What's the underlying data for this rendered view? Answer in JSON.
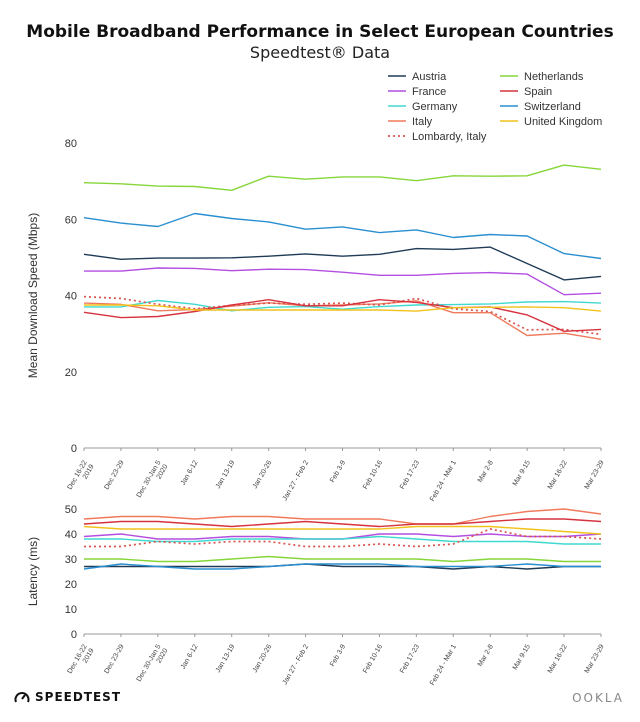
{
  "header": {
    "title": "Mobile Broadband Performance in Select European Countries",
    "subtitle": "Speedtest® Data"
  },
  "footer": {
    "brand_left": "SPEEDTEST",
    "brand_right": "OOKLA"
  },
  "colors": {
    "Austria": "#1f3b57",
    "France": "#b34fe0",
    "Germany": "#3fd9cf",
    "Italy": "#f07a5c",
    "Lombardy, Italy": "#d9534f",
    "Netherlands": "#86d63a",
    "Spain": "#d6333f",
    "Switzerland": "#2a8fd0",
    "United Kingdom": "#f1c21b"
  },
  "chart_data": [
    {
      "type": "line",
      "ylabel": "Mean Download Speed (Mbps)",
      "ylim": [
        0,
        80
      ],
      "yticks": [
        0,
        20,
        40,
        60,
        80
      ],
      "grid": false,
      "legend": "top-right",
      "categories": [
        "Dec 16-22 2019",
        "Dec 23-29",
        "Dec 30-Jan 5 2020",
        "Jan 6-12",
        "Jan 13-19",
        "Jan 20-26",
        "Jan 27 - Feb 2",
        "Feb 3-9",
        "Feb 10-16",
        "Feb 17-23",
        "Feb 24 - Mar 1",
        "Mar 2-8",
        "Mar 9-15",
        "Mar 16-22",
        "Mar 23-29"
      ],
      "series": [
        {
          "name": "Austria",
          "dashed": false,
          "values": [
            50.8,
            49.5,
            49.8,
            49.8,
            49.9,
            50.3,
            50.9,
            50.3,
            50.8,
            52.3,
            52.1,
            52.7,
            48.4,
            44.1,
            45.0
          ]
        },
        {
          "name": "France",
          "dashed": false,
          "values": [
            46.4,
            46.4,
            47.2,
            47.1,
            46.5,
            46.9,
            46.8,
            46.1,
            45.3,
            45.3,
            45.8,
            46.0,
            45.6,
            40.2,
            40.6
          ]
        },
        {
          "name": "Germany",
          "dashed": false,
          "values": [
            37.0,
            37.0,
            38.7,
            37.7,
            36.0,
            36.9,
            37.1,
            36.4,
            37.1,
            37.5,
            37.6,
            37.8,
            38.3,
            38.4,
            38.0
          ]
        },
        {
          "name": "Italy",
          "dashed": false,
          "values": [
            38.0,
            37.7,
            36.0,
            36.3,
            37.2,
            38.1,
            37.3,
            37.5,
            37.8,
            38.6,
            35.5,
            35.5,
            29.5,
            30.1,
            28.5
          ]
        },
        {
          "name": "Lombardy, Italy",
          "dashed": true,
          "values": [
            39.7,
            39.2,
            37.7,
            36.5,
            37.4,
            38.0,
            37.7,
            38.0,
            37.5,
            39.2,
            36.5,
            35.8,
            31.0,
            31.1,
            29.8
          ]
        },
        {
          "name": "Netherlands",
          "dashed": false,
          "values": [
            69.6,
            69.3,
            68.7,
            68.6,
            67.6,
            71.3,
            70.5,
            71.1,
            71.1,
            70.1,
            71.4,
            71.3,
            71.4,
            74.2,
            73.1
          ]
        },
        {
          "name": "Spain",
          "dashed": false,
          "values": [
            35.6,
            34.2,
            34.5,
            35.8,
            37.5,
            38.9,
            37.3,
            37.3,
            38.9,
            38.2,
            36.8,
            37.0,
            34.9,
            30.6,
            31.1
          ]
        },
        {
          "name": "Switzerland",
          "dashed": false,
          "values": [
            60.4,
            59.0,
            58.1,
            61.5,
            60.2,
            59.3,
            57.4,
            58.0,
            56.5,
            57.2,
            55.2,
            56.0,
            55.6,
            51.0,
            49.7
          ]
        },
        {
          "name": "United Kingdom",
          "dashed": false,
          "values": [
            37.5,
            37.5,
            37.3,
            36.2,
            36.2,
            36.2,
            36.2,
            36.2,
            36.2,
            35.9,
            36.8,
            36.9,
            37.0,
            36.8,
            35.9
          ]
        }
      ]
    },
    {
      "type": "line",
      "ylabel": "Latency (ms)",
      "ylim": [
        0,
        50
      ],
      "yticks": [
        0,
        10,
        20,
        30,
        40,
        50
      ],
      "grid": false,
      "categories": [
        "Dec 16-22 2019",
        "Dec 23-29",
        "Dec 30-Jan 5 2020",
        "Jan 6-12",
        "Jan 13-19",
        "Jan 20-26",
        "Jan 27 - Feb 2",
        "Feb 3-9",
        "Feb 10-16",
        "Feb 17-23",
        "Feb 24 - Mar 1",
        "Mar 2-8",
        "Mar 9-15",
        "Mar 16-22",
        "Mar 23-29"
      ],
      "series": [
        {
          "name": "Austria",
          "dashed": false,
          "values": [
            27,
            27,
            27,
            27,
            27,
            27,
            28,
            27,
            27,
            27,
            26,
            27,
            26,
            27,
            27
          ]
        },
        {
          "name": "France",
          "dashed": false,
          "values": [
            39,
            40,
            38,
            38,
            39,
            39,
            38,
            38,
            40,
            40,
            39,
            40,
            39,
            39,
            40
          ]
        },
        {
          "name": "Germany",
          "dashed": false,
          "values": [
            38,
            38,
            37,
            37,
            38,
            38,
            38,
            38,
            39,
            38,
            37,
            37,
            37,
            36,
            36
          ]
        },
        {
          "name": "Italy",
          "dashed": false,
          "values": [
            46,
            47,
            47,
            46,
            47,
            47,
            46,
            46,
            46,
            44,
            44,
            47,
            49,
            50,
            48
          ]
        },
        {
          "name": "Lombardy, Italy",
          "dashed": true,
          "values": [
            35,
            35,
            37,
            36,
            37,
            37,
            35,
            35,
            36,
            35,
            36,
            42,
            39,
            39,
            38
          ]
        },
        {
          "name": "Netherlands",
          "dashed": false,
          "values": [
            30,
            30,
            29,
            29,
            30,
            31,
            30,
            30,
            30,
            30,
            29,
            30,
            30,
            29,
            29
          ]
        },
        {
          "name": "Spain",
          "dashed": false,
          "values": [
            44,
            45,
            45,
            44,
            43,
            44,
            45,
            44,
            43,
            44,
            44,
            45,
            46,
            46,
            45
          ]
        },
        {
          "name": "Switzerland",
          "dashed": false,
          "values": [
            26,
            28,
            27,
            26,
            26,
            27,
            28,
            28,
            28,
            27,
            27,
            27,
            28,
            27,
            27
          ]
        },
        {
          "name": "United Kingdom",
          "dashed": false,
          "values": [
            43,
            42,
            42,
            42,
            42,
            42,
            42,
            42,
            42,
            43,
            43,
            43,
            42,
            41,
            40
          ]
        }
      ]
    }
  ],
  "legend": {
    "columns": [
      [
        "Austria",
        "France",
        "Germany",
        "Italy",
        "Lombardy, Italy"
      ],
      [
        "Netherlands",
        "Spain",
        "Switzerland",
        "United Kingdom"
      ]
    ]
  }
}
